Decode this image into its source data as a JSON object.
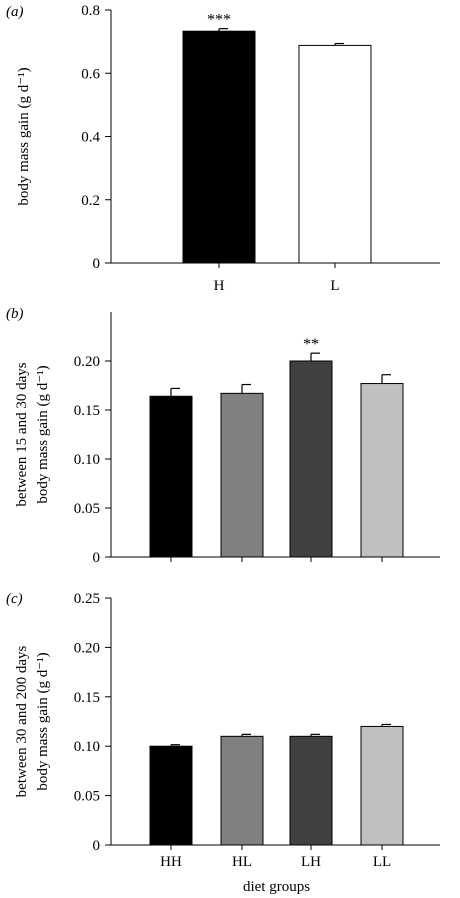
{
  "chart_data": [
    {
      "panel_label": "(a)",
      "type": "bar",
      "categories": [
        "H",
        "L"
      ],
      "values": [
        0.733,
        0.688
      ],
      "errors": [
        0.008,
        0.006
      ],
      "colors": [
        "#000000",
        "#ffffff"
      ],
      "annotations": [
        "***",
        ""
      ],
      "ylabel": [
        "body mass gain (g d⁻¹)"
      ],
      "xlabel": "",
      "ylim": [
        0,
        0.8
      ],
      "yticks": [
        0,
        0.2,
        0.4,
        0.6,
        0.8
      ],
      "ytick_labels": [
        "0",
        "0.2",
        "0.4",
        "0.6",
        "0.8"
      ]
    },
    {
      "panel_label": "(b)",
      "type": "bar",
      "categories": [
        "HH",
        "HL",
        "LH",
        "LL"
      ],
      "values": [
        0.164,
        0.167,
        0.2,
        0.177
      ],
      "errors": [
        0.008,
        0.009,
        0.008,
        0.009
      ],
      "colors": [
        "#000000",
        "#808080",
        "#404040",
        "#c0c0c0"
      ],
      "annotations": [
        "",
        "",
        "**",
        ""
      ],
      "ylabel": [
        "between 15 and 30 days",
        "body mass gain (g d⁻¹)"
      ],
      "xlabel": "",
      "ylim": [
        0,
        0.25
      ],
      "yticks": [
        0,
        0.05,
        0.1,
        0.15,
        0.2
      ],
      "ytick_labels": [
        "0",
        "0.05",
        "0.10",
        "0.15",
        "0.20"
      ]
    },
    {
      "panel_label": "(c)",
      "type": "bar",
      "categories": [
        "HH",
        "HL",
        "LH",
        "LL"
      ],
      "values": [
        0.1,
        0.11,
        0.11,
        0.12
      ],
      "errors": [
        0.0015,
        0.002,
        0.002,
        0.002
      ],
      "colors": [
        "#000000",
        "#808080",
        "#404040",
        "#c0c0c0"
      ],
      "annotations": [
        "",
        "",
        "",
        ""
      ],
      "ylabel": [
        "between 30 and 200 days",
        "body mass gain (g d⁻¹)"
      ],
      "xlabel": "diet groups",
      "ylim": [
        0,
        0.25
      ],
      "yticks": [
        0,
        0.05,
        0.1,
        0.15,
        0.2,
        0.25
      ],
      "ytick_labels": [
        "0",
        "0.05",
        "0.10",
        "0.15",
        "0.20",
        "0.25"
      ]
    }
  ]
}
